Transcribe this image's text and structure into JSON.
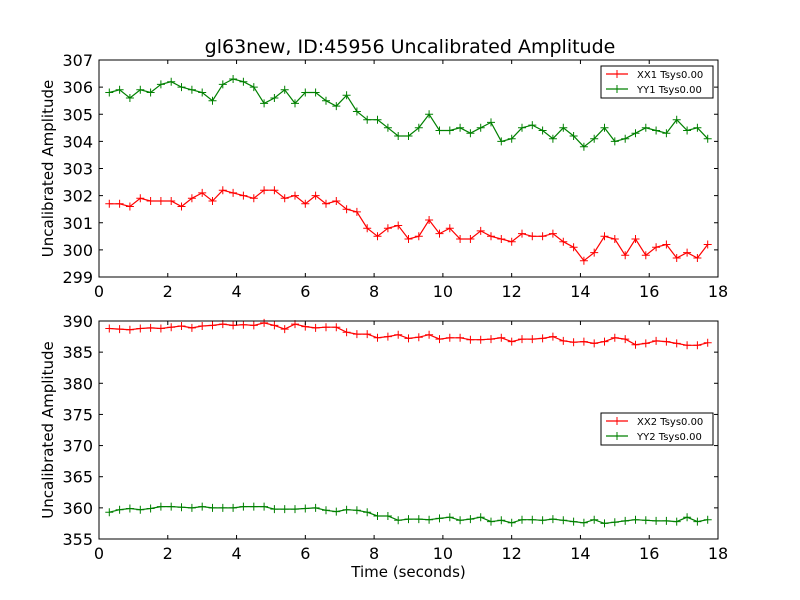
{
  "title": "gl63new, ID:45956 Uncalibrated Amplitude",
  "colors": {
    "red": "#ff0000",
    "green": "#008000"
  },
  "chart_data": [
    {
      "type": "line",
      "title": "gl63new, ID:45956 Uncalibrated Amplitude",
      "xlabel": "",
      "ylabel": "Uncalibrated Amplitude",
      "xlim": [
        0,
        18
      ],
      "ylim": [
        299,
        307
      ],
      "xticks": [
        0,
        2,
        4,
        6,
        8,
        10,
        12,
        14,
        16,
        18
      ],
      "yticks": [
        299,
        300,
        301,
        302,
        303,
        304,
        305,
        306,
        307
      ],
      "grid": false,
      "legend": "top-right",
      "x": [
        0.3,
        0.6,
        0.9,
        1.2,
        1.5,
        1.8,
        2.1,
        2.4,
        2.7,
        3.0,
        3.3,
        3.6,
        3.9,
        4.2,
        4.5,
        4.8,
        5.1,
        5.4,
        5.7,
        6.0,
        6.3,
        6.6,
        6.9,
        7.2,
        7.5,
        7.8,
        8.1,
        8.4,
        8.7,
        9.0,
        9.3,
        9.6,
        9.9,
        10.2,
        10.5,
        10.8,
        11.1,
        11.4,
        11.7,
        12.0,
        12.3,
        12.6,
        12.9,
        13.2,
        13.5,
        13.8,
        14.1,
        14.4,
        14.7,
        15.0,
        15.3,
        15.6,
        15.9,
        16.2,
        16.5,
        16.8,
        17.1,
        17.4,
        17.7
      ],
      "series": [
        {
          "name": "XX1 Tsys0.00",
          "color": "#ff0000",
          "values": [
            301.7,
            301.7,
            301.6,
            301.9,
            301.8,
            301.8,
            301.8,
            301.6,
            301.9,
            302.1,
            301.8,
            302.2,
            302.1,
            302.0,
            301.9,
            302.2,
            302.2,
            301.9,
            302.0,
            301.7,
            302.0,
            301.7,
            301.8,
            301.5,
            301.4,
            300.8,
            300.5,
            300.8,
            300.9,
            300.4,
            300.5,
            301.1,
            300.6,
            300.8,
            300.4,
            300.4,
            300.7,
            300.5,
            300.4,
            300.3,
            300.6,
            300.5,
            300.5,
            300.6,
            300.3,
            300.1,
            299.6,
            299.9,
            300.5,
            300.4,
            299.8,
            300.4,
            299.8,
            300.1,
            300.2,
            299.7,
            299.9,
            299.7,
            300.2
          ]
        },
        {
          "name": "YY1 Tsys0.00",
          "color": "#008000",
          "values": [
            305.8,
            305.9,
            305.6,
            305.9,
            305.8,
            306.1,
            306.2,
            306.0,
            305.9,
            305.8,
            305.5,
            306.1,
            306.3,
            306.2,
            306.0,
            305.4,
            305.6,
            305.9,
            305.4,
            305.8,
            305.8,
            305.5,
            305.3,
            305.7,
            305.1,
            304.8,
            304.8,
            304.5,
            304.2,
            304.2,
            304.5,
            305.0,
            304.4,
            304.4,
            304.5,
            304.3,
            304.5,
            304.7,
            304.0,
            304.1,
            304.5,
            304.6,
            304.4,
            304.1,
            304.5,
            304.2,
            303.8,
            304.1,
            304.5,
            304.0,
            304.1,
            304.3,
            304.5,
            304.4,
            304.3,
            304.8,
            304.4,
            304.5,
            304.1
          ]
        }
      ]
    },
    {
      "type": "line",
      "title": "",
      "xlabel": "Time (seconds)",
      "ylabel": "Uncalibrated Amplitude",
      "xlim": [
        0,
        18
      ],
      "ylim": [
        355,
        390
      ],
      "xticks": [
        0,
        2,
        4,
        6,
        8,
        10,
        12,
        14,
        16,
        18
      ],
      "yticks": [
        355,
        360,
        365,
        370,
        375,
        380,
        385,
        390
      ],
      "grid": false,
      "legend": "center-right",
      "x": [
        0.3,
        0.6,
        0.9,
        1.2,
        1.5,
        1.8,
        2.1,
        2.4,
        2.7,
        3.0,
        3.3,
        3.6,
        3.9,
        4.2,
        4.5,
        4.8,
        5.1,
        5.4,
        5.7,
        6.0,
        6.3,
        6.6,
        6.9,
        7.2,
        7.5,
        7.8,
        8.1,
        8.4,
        8.7,
        9.0,
        9.3,
        9.6,
        9.9,
        10.2,
        10.5,
        10.8,
        11.1,
        11.4,
        11.7,
        12.0,
        12.3,
        12.6,
        12.9,
        13.2,
        13.5,
        13.8,
        14.1,
        14.4,
        14.7,
        15.0,
        15.3,
        15.6,
        15.9,
        16.2,
        16.5,
        16.8,
        17.1,
        17.4,
        17.7
      ],
      "series": [
        {
          "name": "XX2 Tsys0.00",
          "color": "#ff0000",
          "values": [
            388.8,
            388.7,
            388.6,
            388.8,
            388.9,
            388.8,
            389.0,
            389.2,
            388.9,
            389.2,
            389.3,
            389.5,
            389.3,
            389.4,
            389.3,
            389.7,
            389.3,
            388.7,
            389.5,
            389.1,
            388.9,
            389.0,
            389.0,
            388.2,
            387.9,
            387.9,
            387.3,
            387.5,
            387.8,
            387.2,
            387.4,
            387.8,
            387.1,
            387.3,
            387.3,
            387.0,
            387.0,
            387.1,
            387.3,
            386.7,
            387.1,
            387.1,
            387.2,
            387.5,
            386.8,
            386.6,
            386.7,
            386.4,
            386.7,
            387.3,
            387.1,
            386.2,
            386.4,
            386.8,
            386.7,
            386.4,
            386.1,
            386.1,
            386.5
          ]
        },
        {
          "name": "YY2 Tsys0.00",
          "color": "#008000",
          "values": [
            359.3,
            359.7,
            359.9,
            359.7,
            359.9,
            360.2,
            360.2,
            360.1,
            360.0,
            360.2,
            360.0,
            360.0,
            360.0,
            360.2,
            360.2,
            360.2,
            359.8,
            359.8,
            359.8,
            359.9,
            360.0,
            359.6,
            359.4,
            359.7,
            359.6,
            359.3,
            358.7,
            358.7,
            358.0,
            358.2,
            358.2,
            358.1,
            358.3,
            358.5,
            358.0,
            358.2,
            358.5,
            357.8,
            358.0,
            357.6,
            358.1,
            358.1,
            358.0,
            358.2,
            358.0,
            357.8,
            357.6,
            358.1,
            357.5,
            357.7,
            357.9,
            358.1,
            358.0,
            357.9,
            357.9,
            357.8,
            358.5,
            357.8,
            358.1
          ]
        }
      ]
    }
  ]
}
